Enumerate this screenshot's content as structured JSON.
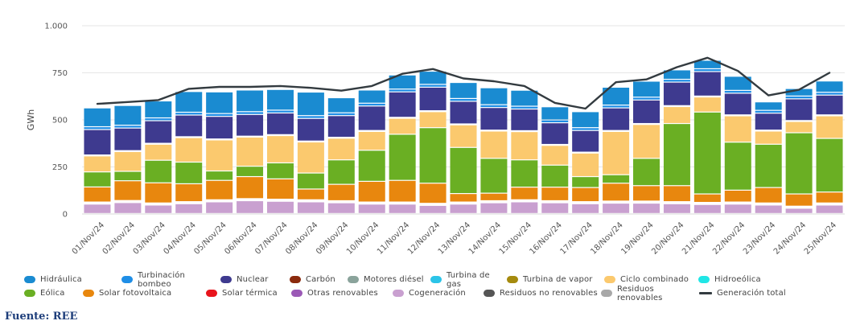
{
  "source": "Fuente: REE",
  "chart_data": {
    "type": "bar",
    "stacked": true,
    "title": "",
    "xlabel": "",
    "ylabel": "GWh",
    "ylim": [
      0,
      1000
    ],
    "yticks": [
      {
        "value": 0,
        "label": "0"
      },
      {
        "value": 250,
        "label": "250"
      },
      {
        "value": 500,
        "label": "500"
      },
      {
        "value": 750,
        "label": "750"
      },
      {
        "value": 1000,
        "label": "1.000"
      }
    ],
    "grid": true,
    "legend_position": "bottom",
    "categories": [
      "01/Nov/24",
      "02/Nov/24",
      "03/Nov/24",
      "04/Nov/24",
      "05/Nov/24",
      "06/Nov/24",
      "07/Nov/24",
      "08/Nov/24",
      "09/Nov/24",
      "10/Nov/24",
      "11/Nov/24",
      "12/Nov/24",
      "13/Nov/24",
      "14/Nov/24",
      "15/Nov/24",
      "16/Nov/24",
      "17/Nov/24",
      "18/Nov/24",
      "19/Nov/24",
      "20/Nov/24",
      "21/Nov/24",
      "22/Nov/24",
      "23/Nov/24",
      "24/Nov/24",
      "25/Nov/24"
    ],
    "series": [
      {
        "name": "Cogeneración",
        "color": "#c9a0d0",
        "values": [
          50,
          58,
          45,
          52,
          62,
          68,
          65,
          62,
          57,
          50,
          50,
          43,
          50,
          57,
          62,
          57,
          52,
          55,
          55,
          52,
          48,
          50,
          45,
          28,
          45
        ]
      },
      {
        "name": "Otras renovables",
        "color": "#9b59b6",
        "values": [
          3,
          3,
          3,
          3,
          3,
          3,
          3,
          3,
          3,
          3,
          3,
          3,
          3,
          3,
          3,
          3,
          3,
          3,
          3,
          3,
          3,
          3,
          3,
          3,
          3
        ]
      },
      {
        "name": "Residuos renovables",
        "color": "#a8a8a8",
        "values": [
          4,
          4,
          4,
          4,
          4,
          4,
          4,
          4,
          4,
          4,
          4,
          4,
          4,
          4,
          4,
          4,
          4,
          4,
          4,
          4,
          4,
          4,
          4,
          4,
          4
        ]
      },
      {
        "name": "Residuos no renovables",
        "color": "#555555",
        "values": [
          3,
          3,
          3,
          3,
          3,
          3,
          3,
          3,
          3,
          3,
          3,
          3,
          3,
          3,
          3,
          3,
          3,
          3,
          3,
          3,
          3,
          3,
          3,
          3,
          3
        ]
      },
      {
        "name": "Solar térmica",
        "color": "#e8141c",
        "values": [
          1,
          1,
          1,
          1,
          1,
          1,
          1,
          1,
          1,
          1,
          1,
          1,
          1,
          1,
          1,
          1,
          1,
          1,
          1,
          1,
          1,
          1,
          1,
          1,
          1
        ]
      },
      {
        "name": "Solar fotovoltaica",
        "color": "#e8870e",
        "values": [
          80,
          105,
          107,
          95,
          103,
          117,
          108,
          57,
          87,
          110,
          115,
          107,
          45,
          40,
          67,
          72,
          75,
          95,
          82,
          85,
          45,
          63,
          82,
          65,
          58
        ]
      },
      {
        "name": "Eólica",
        "color": "#6aaf23",
        "values": [
          80,
          50,
          120,
          115,
          50,
          55,
          85,
          85,
          130,
          165,
          245,
          295,
          245,
          185,
          145,
          117,
          58,
          45,
          145,
          330,
          435,
          255,
          230,
          325,
          285
        ]
      },
      {
        "name": "Hidroeólica",
        "color": "#20e6e6",
        "values": [
          0,
          0,
          0,
          0,
          0,
          0,
          0,
          0,
          0,
          0,
          0,
          0,
          0,
          0,
          0,
          0,
          0,
          0,
          0,
          0,
          0,
          0,
          0,
          0,
          0
        ]
      },
      {
        "name": "Ciclo combinado",
        "color": "#fbc96e",
        "values": [
          85,
          105,
          85,
          130,
          165,
          155,
          145,
          165,
          115,
          100,
          85,
          85,
          120,
          145,
          150,
          105,
          125,
          230,
          180,
          90,
          80,
          140,
          70,
          60,
          120
        ]
      },
      {
        "name": "Turbina de vapor",
        "color": "#a58a0e",
        "values": [
          0,
          0,
          0,
          0,
          0,
          0,
          0,
          0,
          0,
          0,
          0,
          0,
          0,
          0,
          0,
          0,
          0,
          0,
          0,
          0,
          0,
          0,
          0,
          0,
          0
        ]
      },
      {
        "name": "Turbina de gas",
        "color": "#2bc4e8",
        "values": [
          0,
          0,
          0,
          0,
          0,
          0,
          0,
          0,
          0,
          0,
          0,
          0,
          0,
          0,
          0,
          0,
          0,
          0,
          0,
          0,
          0,
          0,
          0,
          0,
          0
        ]
      },
      {
        "name": "Motores diésel",
        "color": "#8aa39b",
        "values": [
          0,
          0,
          0,
          0,
          0,
          0,
          0,
          0,
          0,
          0,
          0,
          0,
          0,
          0,
          0,
          0,
          0,
          0,
          0,
          0,
          0,
          0,
          0,
          0,
          0
        ]
      },
      {
        "name": "Carbón",
        "color": "#8b2a0d",
        "values": [
          5,
          5,
          5,
          5,
          5,
          5,
          5,
          5,
          5,
          5,
          5,
          5,
          5,
          5,
          5,
          5,
          5,
          5,
          5,
          5,
          5,
          5,
          5,
          5,
          5
        ]
      },
      {
        "name": "Nuclear",
        "color": "#3e3a8f",
        "values": [
          135,
          120,
          120,
          115,
          120,
          115,
          115,
          120,
          115,
          130,
          135,
          125,
          120,
          120,
          115,
          115,
          115,
          120,
          125,
          125,
          130,
          115,
          90,
          115,
          105
        ]
      },
      {
        "name": "Turbinación bombeo",
        "color": "#1f8ee6",
        "values": [
          15,
          15,
          15,
          15,
          15,
          15,
          15,
          15,
          15,
          15,
          15,
          15,
          15,
          15,
          15,
          15,
          15,
          15,
          15,
          15,
          15,
          15,
          15,
          15,
          15
        ]
      },
      {
        "name": "Hidráulica",
        "color": "#1a8bd1",
        "values": [
          100,
          105,
          90,
          110,
          115,
          115,
          110,
          125,
          80,
          70,
          75,
          70,
          85,
          90,
          85,
          70,
          85,
          95,
          85,
          50,
          45,
          75,
          45,
          40,
          60
        ]
      }
    ],
    "line": {
      "name": "Generación total",
      "color": "#333b40",
      "values": [
        585,
        595,
        605,
        665,
        675,
        675,
        680,
        670,
        655,
        680,
        745,
        770,
        720,
        705,
        680,
        590,
        560,
        700,
        715,
        780,
        830,
        760,
        630,
        660,
        750
      ]
    }
  },
  "legend": {
    "rows": [
      [
        {
          "label": "Hidráulica",
          "color": "#1a8bd1",
          "kind": "swatch"
        },
        {
          "label": "Turbinación bombeo",
          "color": "#1f8ee6",
          "kind": "swatch"
        },
        {
          "label": "Nuclear",
          "color": "#3e3a8f",
          "kind": "swatch"
        },
        {
          "label": "Carbón",
          "color": "#8b2a0d",
          "kind": "swatch"
        },
        {
          "label": "Motores diésel",
          "color": "#8aa39b",
          "kind": "swatch"
        },
        {
          "label": "Turbina de gas",
          "color": "#2bc4e8",
          "kind": "swatch"
        },
        {
          "label": "Turbina de vapor",
          "color": "#a58a0e",
          "kind": "swatch"
        },
        {
          "label": "Ciclo combinado",
          "color": "#fbc96e",
          "kind": "swatch"
        },
        {
          "label": "Hidroeólica",
          "color": "#20e6e6",
          "kind": "swatch"
        }
      ],
      [
        {
          "label": "Eólica",
          "color": "#6aaf23",
          "kind": "swatch"
        },
        {
          "label": "Solar fotovoltaica",
          "color": "#e8870e",
          "kind": "swatch"
        },
        {
          "label": "Solar térmica",
          "color": "#e8141c",
          "kind": "swatch"
        },
        {
          "label": "Otras renovables",
          "color": "#9b59b6",
          "kind": "swatch"
        },
        {
          "label": "Cogeneración",
          "color": "#c9a0d0",
          "kind": "swatch"
        },
        {
          "label": "Residuos no renovables",
          "color": "#555555",
          "kind": "swatch"
        },
        {
          "label": "Residuos renovables",
          "color": "#a8a8a8",
          "kind": "swatch"
        },
        {
          "label": "Generación total",
          "color": "#333b40",
          "kind": "line"
        }
      ]
    ]
  }
}
